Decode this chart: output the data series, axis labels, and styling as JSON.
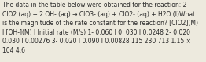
{
  "text": "The data in the table below were obtained for the reaction: 2\nClO2 (aq) + 2 OH- (aq) → ClO3- (aq) + ClO2- (aq) + H2O (l)What\nis the magnitude of the rate constant for the reaction? [ClO2](M)\nI [OH-](M) I Initial rate (M/s) 1- 0.060 I 0. 030 I 0.0248 2- 0.020 I\n0.030 I 0.00276 3- 0.020 I 0.090 I 0.00828 115 230 713 1.15 ×\n104 4.6",
  "font_size": 5.5,
  "bg_color": "#edeade",
  "text_color": "#2a2a2a",
  "font_family": "DejaVu Sans",
  "linespacing": 1.35
}
